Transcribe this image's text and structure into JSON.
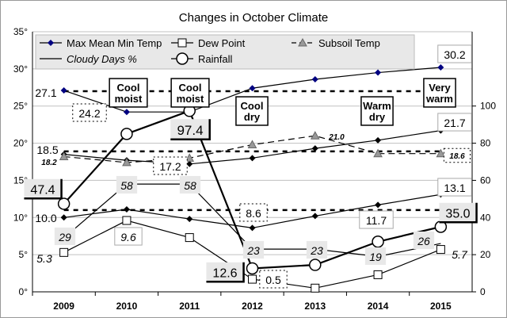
{
  "chart_data": {
    "type": "line",
    "title": "Changes in October Climate",
    "categories": [
      "2009",
      "2010",
      "2011",
      "2012",
      "2013",
      "2014",
      "2015"
    ],
    "y_left": {
      "min": 0,
      "max": 35,
      "ticks": [
        "0°",
        "5°",
        "10°",
        "15°",
        "20°",
        "25°",
        "30°",
        "35°"
      ]
    },
    "y_right": {
      "min": 0,
      "max": 140,
      "ticks": [
        "0",
        "20",
        "40",
        "60",
        "80",
        "100"
      ]
    },
    "grid": true,
    "legend_position": "top",
    "series": [
      {
        "name": "Max Mean Min Temp",
        "axis": "left",
        "marker": "diamond",
        "color": "#000080",
        "values": [
          27.1,
          24.2,
          24.2,
          27.4,
          28.6,
          29.5,
          30.2
        ]
      },
      {
        "name": "",
        "axis": "left",
        "marker": "diamond",
        "color": "#000000",
        "values": [
          18.5,
          17.7,
          17.2,
          18.0,
          19.3,
          20.4,
          21.7
        ]
      },
      {
        "name": "",
        "axis": "left",
        "marker": "diamond",
        "color": "#000000",
        "values": [
          10.0,
          11.1,
          9.8,
          8.6,
          10.2,
          11.7,
          13.1
        ]
      },
      {
        "name": "Dew Point",
        "axis": "left",
        "marker": "square",
        "color": "#000000",
        "values": [
          5.3,
          9.6,
          7.3,
          1.7,
          0.5,
          2.3,
          5.7
        ]
      },
      {
        "name": "Subsoil Temp",
        "axis": "left",
        "marker": "triangle",
        "color": "#808080",
        "values": [
          18.2,
          17.4,
          18.0,
          19.8,
          21.0,
          18.6,
          18.6
        ]
      },
      {
        "name": "Cloudy Days %",
        "axis": "right",
        "marker": "none",
        "color": "#000000",
        "values": [
          29,
          58,
          58,
          23,
          23,
          19,
          26
        ]
      },
      {
        "name": "Rainfall",
        "axis": "right",
        "marker": "circle",
        "color": "#000000",
        "values": [
          47.4,
          85,
          97.4,
          12.6,
          14.5,
          27,
          35.0
        ]
      }
    ],
    "reference_lines": [
      27.0,
      18.9,
      11.0
    ],
    "annotations": [
      "27.1",
      "24.2",
      "Cool moist",
      "Cool moist",
      "97.4",
      "Cool dry",
      "Warm dry",
      "Very warm",
      "30.2",
      "21.7",
      "21.0",
      "18.6",
      "18.5",
      "18.2",
      "17.2",
      "47.4",
      "58",
      "58",
      "29",
      "10.0",
      "9.6",
      "5.3",
      "8.6",
      "11.7",
      "13.1",
      "35.0",
      "26",
      "23",
      "23",
      "19",
      "12.6",
      "0.5",
      "5.7"
    ]
  }
}
